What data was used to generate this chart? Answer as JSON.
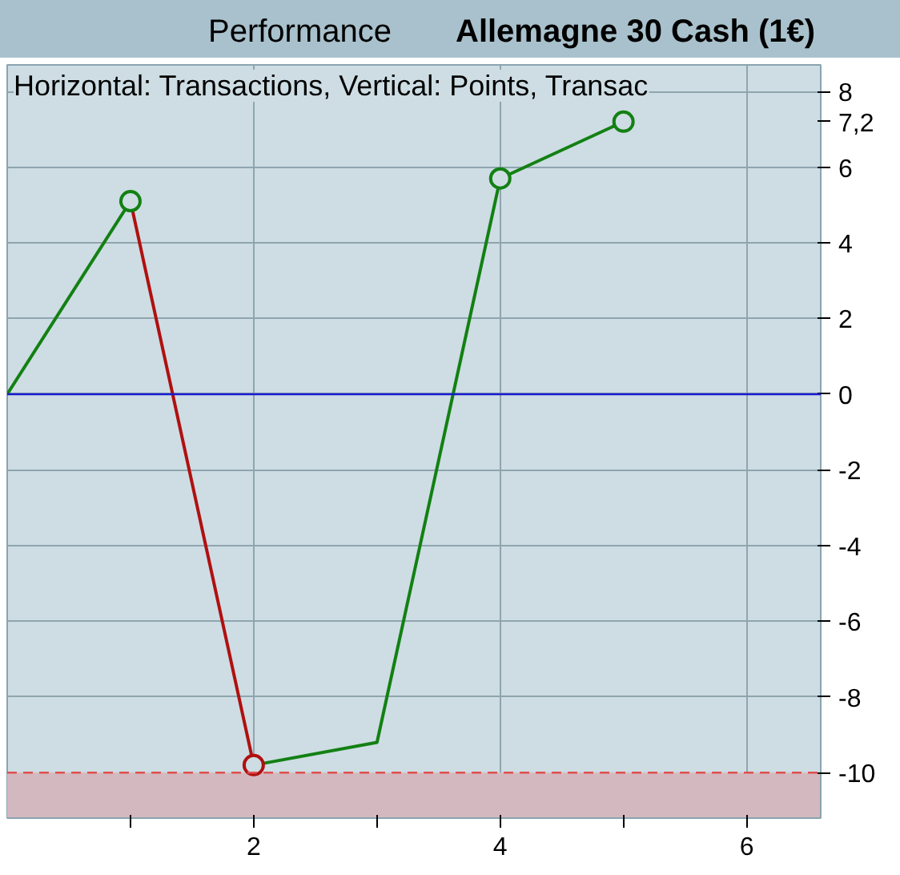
{
  "chart_data": {
    "type": "line",
    "title": "Performance",
    "subtitle": "Allemagne 30 Cash (1€)",
    "annotations": [
      "Horizontal: Transactions, Vertical: Points, Transac"
    ],
    "series": [
      {
        "color": "#138013",
        "x": [
          0,
          1
        ],
        "values": [
          0,
          5.1
        ]
      },
      {
        "type": "line",
        "color": "#b01010",
        "x": [
          1,
          2
        ],
        "values": [
          5.1,
          -9.8
        ]
      },
      {
        "type": "line",
        "color": "#138013",
        "x": [
          2,
          3,
          4,
          5
        ],
        "values": [
          -9.8,
          -9.2,
          5.7,
          7.2
        ]
      },
      {
        "type": "scatter",
        "marker": "circle",
        "colors": [
          "#138013",
          "#b01010",
          "#138013",
          "#138013"
        ],
        "x": [
          1,
          2,
          4,
          5
        ],
        "values": [
          5.1,
          -9.8,
          5.7,
          7.2
        ]
      }
    ],
    "xlim": [
      0,
      6.6
    ],
    "ylim": [
      -11.2,
      8.7
    ],
    "xticks": [
      {
        "value": 1,
        "label": null
      },
      2,
      {
        "value": 3,
        "label": null
      },
      4,
      {
        "value": 5,
        "label": null
      },
      6
    ],
    "yticks": [
      {
        "value": -10,
        "label": null
      },
      -8,
      -6,
      -4,
      -2,
      0,
      2,
      4,
      6,
      {
        "value": 7.2,
        "label": "7,2"
      },
      8
    ],
    "ref_lines": [
      {
        "axis": "y",
        "value": 0,
        "label": null,
        "color": "#1a1ad0",
        "line_style": "solid"
      },
      {
        "axis": "y",
        "value": -10,
        "label": "-10",
        "color": "#e05050",
        "line_style": "dashed"
      }
    ],
    "bands": [
      {
        "axis": "y",
        "from": -11.2,
        "to": -10,
        "label": null,
        "color": "#d4b8bf"
      }
    ],
    "grid": true
  }
}
